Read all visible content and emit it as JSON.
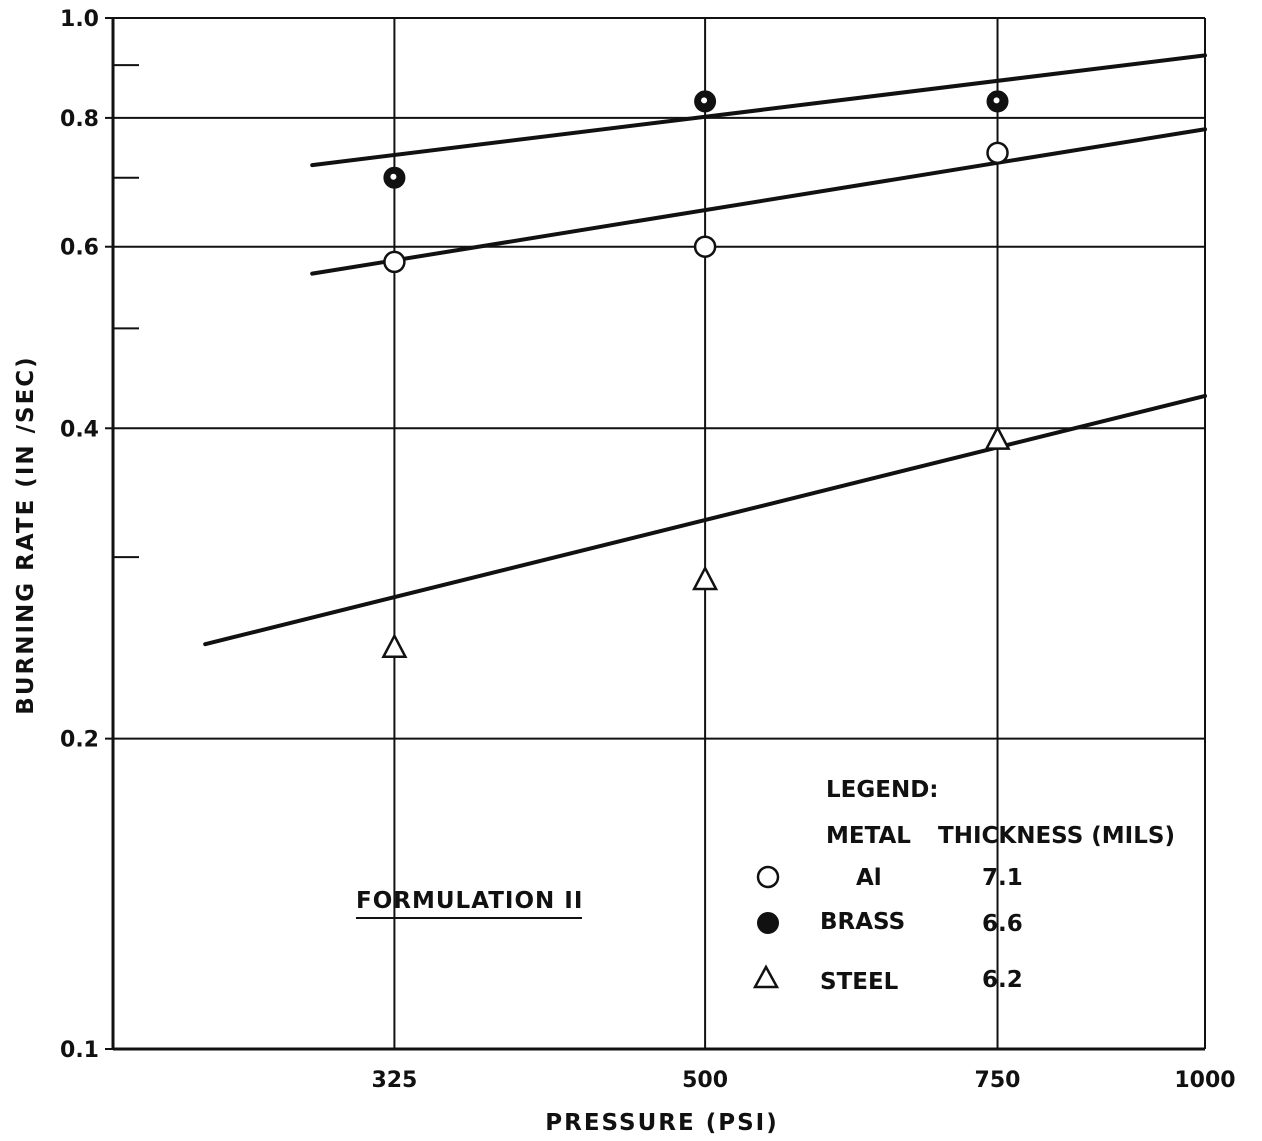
{
  "chart_data": {
    "type": "scatter",
    "title": "",
    "xlabel": "PRESSURE (PSI)",
    "ylabel": "BURNING RATE (IN /SEC)",
    "x_scale": "log",
    "y_scale": "log",
    "xlim": [
      220,
      1000
    ],
    "ylim": [
      0.1,
      1.0
    ],
    "x_tick_values": [
      325,
      500,
      750,
      1000
    ],
    "x_tick_labels": [
      "325",
      "500",
      "750",
      "1000"
    ],
    "y_tick_values": [
      0.1,
      0.2,
      0.4,
      0.6,
      0.8,
      1.0
    ],
    "y_tick_labels": [
      "0.1",
      "0.2",
      "0.4",
      "0.6",
      "0.8",
      "1.0"
    ],
    "y_minor_ticks": [
      0.3,
      0.5,
      0.7,
      0.9
    ],
    "grid": true,
    "series": [
      {
        "name": "BRASS",
        "marker": "filled-circle",
        "points": [
          {
            "x": 325,
            "y": 0.7
          },
          {
            "x": 500,
            "y": 0.83
          },
          {
            "x": 750,
            "y": 0.83
          }
        ],
        "fit_line": {
          "x": [
            290,
            1000
          ],
          "y": [
            0.72,
            0.92
          ]
        }
      },
      {
        "name": "Al",
        "marker": "open-circle",
        "points": [
          {
            "x": 325,
            "y": 0.58
          },
          {
            "x": 500,
            "y": 0.6
          },
          {
            "x": 750,
            "y": 0.74
          }
        ],
        "fit_line": {
          "x": [
            290,
            1000
          ],
          "y": [
            0.565,
            0.78
          ]
        }
      },
      {
        "name": "STEEL",
        "marker": "open-triangle",
        "points": [
          {
            "x": 325,
            "y": 0.245
          },
          {
            "x": 500,
            "y": 0.285
          },
          {
            "x": 750,
            "y": 0.39
          }
        ],
        "fit_line": {
          "x": [
            250,
            1000
          ],
          "y": [
            0.247,
            0.43
          ]
        }
      }
    ],
    "annotation": "FORMULATION II",
    "legend": {
      "position": "bottom-right",
      "title": "LEGEND:",
      "col_metal": "METAL",
      "col_thickness": "THICKNESS (MILS)",
      "entries": [
        {
          "metal": "Al",
          "thickness": "7.1",
          "marker": "open-circle"
        },
        {
          "metal": "BRASS",
          "thickness": "6.6",
          "marker": "filled-circle"
        },
        {
          "metal": "STEEL",
          "thickness": "6.2",
          "marker": "open-triangle"
        }
      ]
    },
    "colors": {
      "ink": "#111111",
      "background": "#ffffff"
    }
  }
}
